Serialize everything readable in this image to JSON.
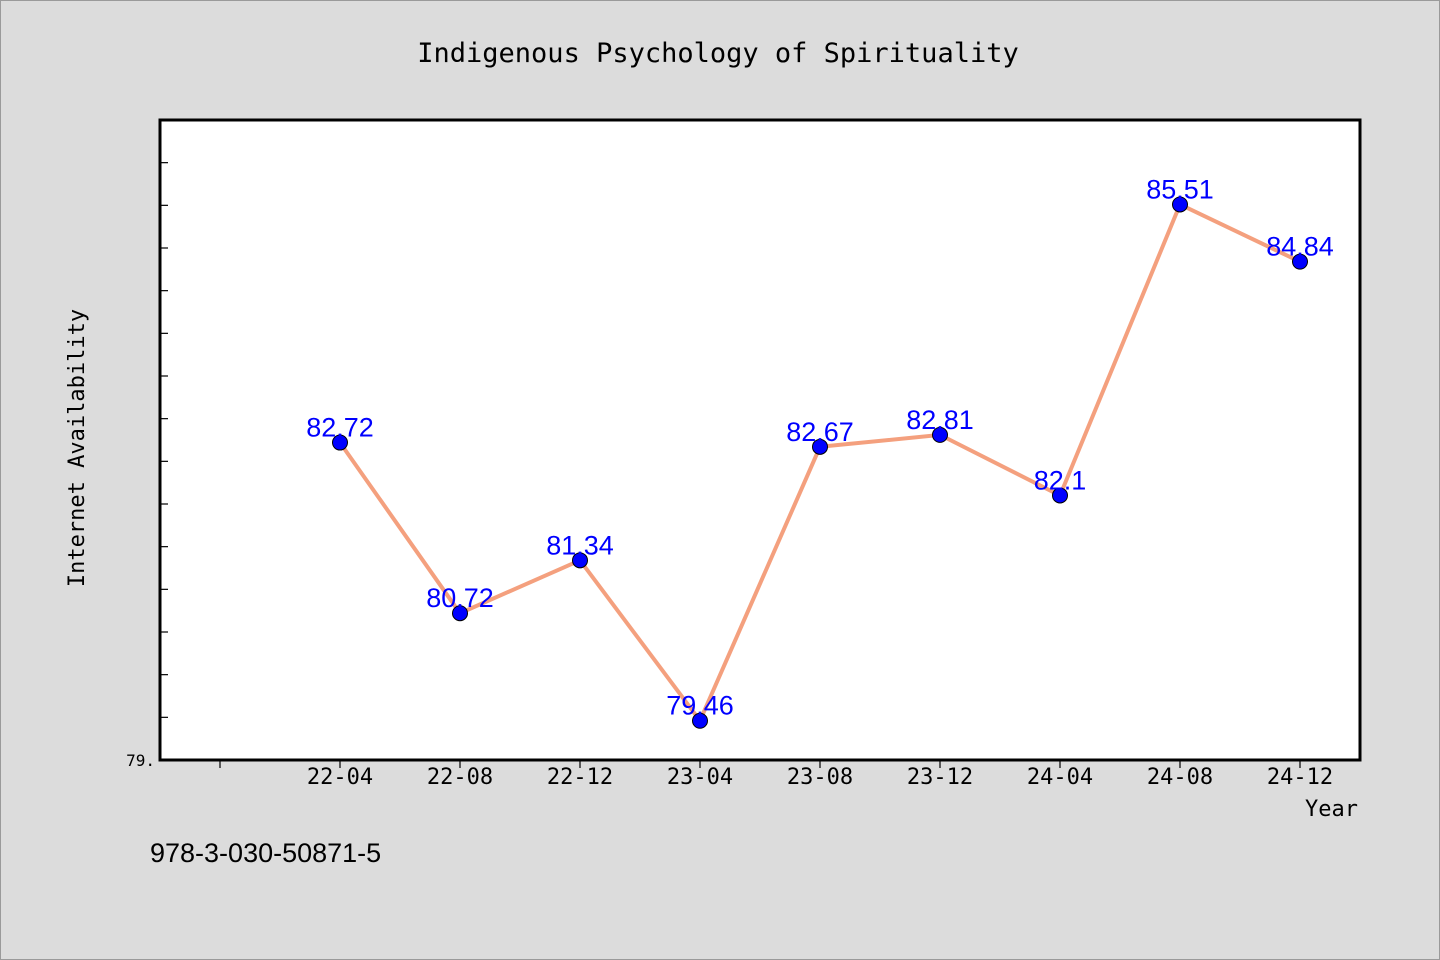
{
  "chart_data": {
    "type": "line",
    "title": "Indigenous Psychology of Spirituality",
    "xlabel": "Year",
    "ylabel": "Internet Availability",
    "categories": [
      "22-04",
      "22-08",
      "22-12",
      "23-04",
      "23-08",
      "23-12",
      "24-04",
      "24-08",
      "24-12"
    ],
    "series": [
      {
        "values": [
          82.72,
          80.72,
          81.34,
          79.46,
          82.67,
          82.81,
          82.1,
          85.51,
          84.84
        ]
      }
    ],
    "data_labels": [
      "82.72",
      "80.72",
      "81.34",
      "79.46",
      "82.67",
      "82.81",
      "82.1",
      "85.51",
      "84.84"
    ],
    "ylim": [
      79.0,
      86.5
    ],
    "y_tick_label": "79.",
    "y_minor_step": 0.5,
    "grid": false,
    "line_color": "#f4a07e",
    "marker_color": "#0000ff",
    "label_color": "#0000ff",
    "background_color": "#dcdcdc",
    "plot_background": "#ffffff"
  },
  "footer": {
    "isbn": "978-3-030-50871-5"
  }
}
